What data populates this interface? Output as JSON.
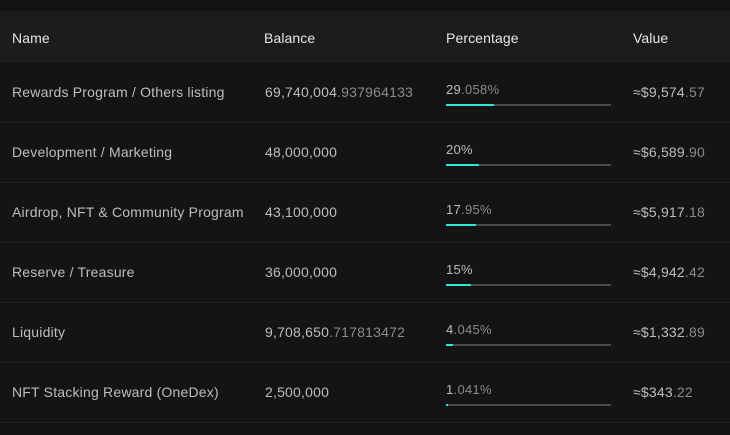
{
  "table": {
    "columns": [
      "Name",
      "Balance",
      "Percentage",
      "Value"
    ],
    "rows": [
      {
        "name": "Rewards Program / Others listing",
        "balance_int": "69,740,004",
        "balance_dec": ".937964133",
        "pct_int": "29",
        "pct_dec": ".058%",
        "pct_value": 29.058,
        "value_int": "≈$9,574",
        "value_dec": ".57"
      },
      {
        "name": "Development / Marketing",
        "balance_int": "48,000,000",
        "balance_dec": "",
        "pct_int": "20%",
        "pct_dec": "",
        "pct_value": 20,
        "value_int": "≈$6,589",
        "value_dec": ".90"
      },
      {
        "name": "Airdrop, NFT & Community Program",
        "balance_int": "43,100,000",
        "balance_dec": "",
        "pct_int": "17",
        "pct_dec": ".95%",
        "pct_value": 17.95,
        "value_int": "≈$5,917",
        "value_dec": ".18"
      },
      {
        "name": "Reserve / Treasure",
        "balance_int": "36,000,000",
        "balance_dec": "",
        "pct_int": "15%",
        "pct_dec": "",
        "pct_value": 15,
        "value_int": "≈$4,942",
        "value_dec": ".42"
      },
      {
        "name": "Liquidity",
        "balance_int": "9,708,650",
        "balance_dec": ".717813472",
        "pct_int": "4",
        "pct_dec": ".045%",
        "pct_value": 4.045,
        "value_int": "≈$1,332",
        "value_dec": ".89"
      },
      {
        "name": "NFT Stacking Reward (OneDex)",
        "balance_int": "2,500,000",
        "balance_dec": "",
        "pct_int": "1",
        "pct_dec": ".041%",
        "pct_value": 1.041,
        "value_int": "≈$343",
        "value_dec": ".22"
      }
    ]
  },
  "colors": {
    "bar_fill": "#2ee8d4",
    "bar_track": "#4a4a4a",
    "header_bg": "#1c1c1c",
    "row_bg": "#141414"
  }
}
